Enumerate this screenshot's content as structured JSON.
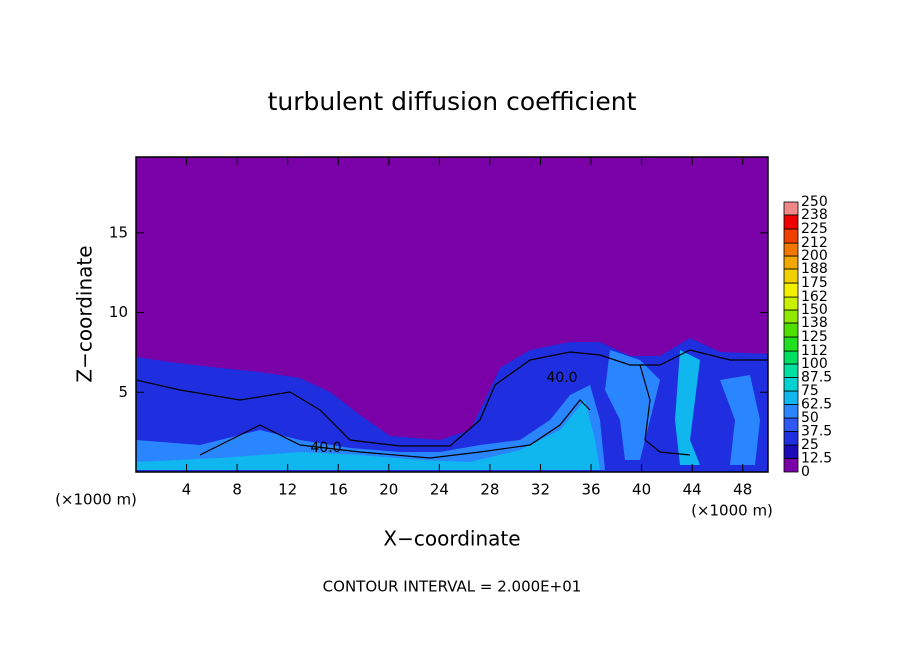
{
  "chart_data": {
    "type": "contour",
    "title": "turbulent diffusion coefficient",
    "xlabel": "X−coordinate",
    "ylabel": "Z−coordinate",
    "x_unit": "(×1000 m)",
    "note": "CONTOUR INTERVAL = 2.000E+01",
    "contour_labels": [
      "40.0",
      "40.0"
    ],
    "xlim": [
      0,
      50
    ],
    "xticks": [
      4,
      8,
      12,
      16,
      20,
      24,
      28,
      32,
      36,
      40,
      44,
      48
    ],
    "ylim": [
      0,
      19.75
    ],
    "yticks": [
      5,
      10,
      15
    ],
    "levels": [
      0,
      12.5,
      25,
      37.5,
      50,
      62.5,
      75,
      87.5,
      100,
      112,
      125,
      138,
      150,
      162,
      175,
      188,
      200,
      212,
      225,
      238,
      250
    ],
    "colors": [
      "#7a00a8",
      "#1c0ab8",
      "#1f2fe0",
      "#2f58f0",
      "#2a86ff",
      "#10b6ee",
      "#00d2d2",
      "#00e0a0",
      "#00e060",
      "#20e020",
      "#50e000",
      "#90e800",
      "#c8f000",
      "#f0f000",
      "#f0d000",
      "#f0a800",
      "#f07800",
      "#f04000",
      "#f00000",
      "#f08888"
    ]
  }
}
